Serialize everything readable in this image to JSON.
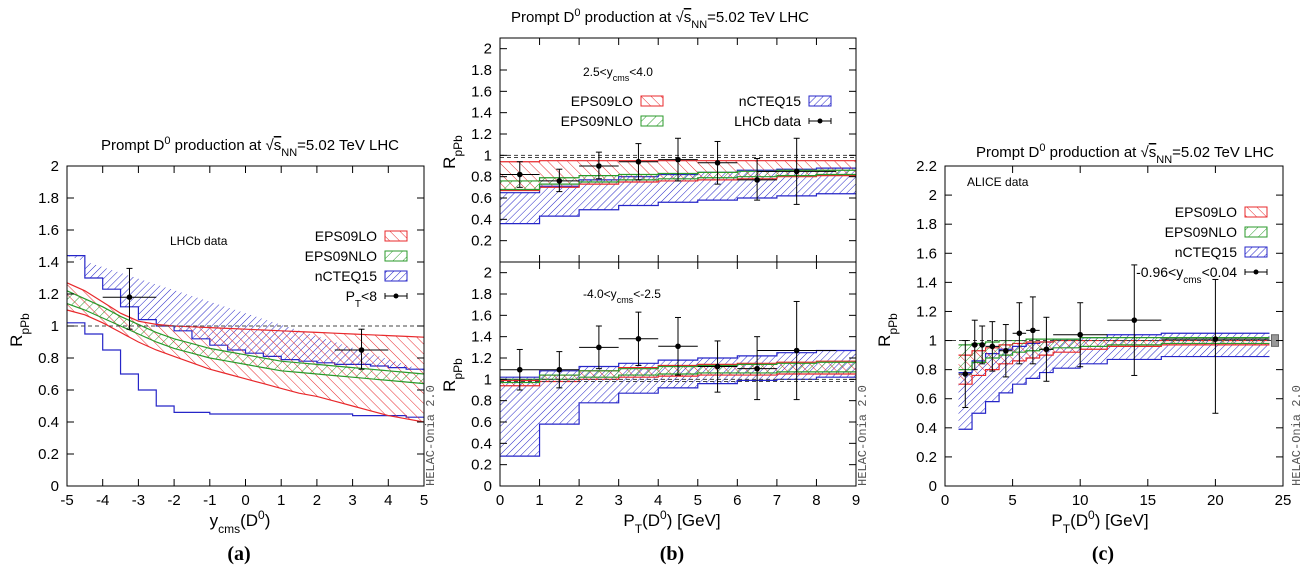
{
  "colors": {
    "eps09lo": "#e8282b",
    "eps09nlo": "#2a9a2a",
    "ncteq15": "#2626c8",
    "data": "#000000",
    "frame": "#000000"
  },
  "chart_data": [
    {
      "type": "area",
      "panel_label": "(a)",
      "title_prefix": "Prompt D",
      "title_sup": "0",
      "title_mid": " production at ",
      "title_sqrt": "s",
      "title_sub": "NN",
      "title_suffix": "=5.02 TeV LHC",
      "xlabel_main": "y",
      "xlabel_sub": "cms",
      "xlabel_rest": "(D",
      "xlabel_sup": "0",
      "xlabel_end": ")",
      "ylabel_main": "R",
      "ylabel_sub": "pPb",
      "xlim": [
        -5,
        5
      ],
      "ylim": [
        0,
        2
      ],
      "xticks": [
        "-5",
        "-4",
        "-3",
        "-2",
        "-1",
        "0",
        "1",
        "2",
        "3",
        "4",
        "5"
      ],
      "yticks": [
        "0",
        "0.2",
        "0.4",
        "0.6",
        "0.8",
        "1",
        "1.2",
        "1.4",
        "1.6",
        "1.8",
        "2"
      ],
      "annotation": "LHCb data",
      "watermark": "HELAC-Onia 2.0",
      "legend": [
        {
          "series": "eps09lo",
          "label": "EPS09LO"
        },
        {
          "series": "eps09nlo",
          "label": "EPS09NLO"
        },
        {
          "series": "ncteq15",
          "label": "nCTEQ15"
        },
        {
          "series": "data",
          "label": "",
          "label_main": "P",
          "label_sub": "T",
          "label_rest": "<8"
        }
      ],
      "bands": {
        "eps09lo": {
          "mode": "smooth",
          "x": [
            -5,
            -4.5,
            -4,
            -3.5,
            -3,
            -2.5,
            -2,
            -1.5,
            -1,
            -0.5,
            0,
            0.5,
            1,
            1.5,
            2,
            2.5,
            3,
            3.5,
            4,
            4.5,
            5
          ],
          "lo": [
            1.1,
            1.07,
            1.02,
            0.96,
            0.9,
            0.85,
            0.81,
            0.77,
            0.73,
            0.7,
            0.67,
            0.64,
            0.61,
            0.58,
            0.56,
            0.53,
            0.5,
            0.47,
            0.44,
            0.42,
            0.4
          ],
          "hi": [
            1.27,
            1.22,
            1.15,
            1.08,
            1.03,
            1.01,
            1.0,
            0.995,
            0.99,
            0.985,
            0.98,
            0.975,
            0.97,
            0.965,
            0.96,
            0.955,
            0.95,
            0.945,
            0.94,
            0.935,
            0.93
          ]
        },
        "eps09nlo": {
          "mode": "smooth",
          "x": [
            -5,
            -4.5,
            -4,
            -3.5,
            -3,
            -2.5,
            -2,
            -1.5,
            -1,
            -0.5,
            0,
            0.5,
            1,
            1.5,
            2,
            2.5,
            3,
            3.5,
            4,
            4.5,
            5
          ],
          "lo": [
            1.14,
            1.1,
            1.05,
            1.0,
            0.95,
            0.9,
            0.86,
            0.83,
            0.8,
            0.78,
            0.76,
            0.74,
            0.72,
            0.71,
            0.7,
            0.69,
            0.68,
            0.67,
            0.66,
            0.65,
            0.64
          ],
          "hi": [
            1.22,
            1.17,
            1.12,
            1.06,
            1.01,
            0.96,
            0.92,
            0.89,
            0.86,
            0.84,
            0.82,
            0.8,
            0.78,
            0.77,
            0.76,
            0.75,
            0.74,
            0.73,
            0.72,
            0.71,
            0.7
          ]
        },
        "ncteq15": {
          "mode": "step",
          "edges": [
            -5,
            -4.5,
            -4,
            -3.5,
            -3,
            -2.5,
            -2,
            -1.5,
            -1,
            -0.5,
            0,
            0.5,
            1,
            1.5,
            2,
            2.5,
            3,
            3.5,
            4,
            4.5,
            5
          ],
          "lo": [
            1.02,
            0.95,
            0.85,
            0.7,
            0.6,
            0.5,
            0.46,
            0.46,
            0.45,
            0.45,
            0.45,
            0.45,
            0.45,
            0.45,
            0.45,
            0.45,
            0.44,
            0.44,
            0.44,
            0.43,
            0.43
          ],
          "hi": [
            1.44,
            1.3,
            1.23,
            1.12,
            1.04,
            1.0,
            0.97,
            0.92,
            0.88,
            0.85,
            0.83,
            0.81,
            0.79,
            0.78,
            0.77,
            0.76,
            0.76,
            0.75,
            0.74,
            0.73,
            0.72
          ]
        }
      },
      "refline": 1.0,
      "points": [
        {
          "x": -3.25,
          "y": 1.18,
          "xerr": 0.75,
          "ylo": 0.98,
          "yhi": 1.36
        },
        {
          "x": 3.25,
          "y": 0.85,
          "xerr": 0.75,
          "ylo": 0.73,
          "yhi": 0.98
        }
      ]
    },
    {
      "type": "area",
      "panel_label": "(b)",
      "title_prefix": "Prompt D",
      "title_sup": "0",
      "title_mid": " production at ",
      "title_sqrt": "s",
      "title_sub": "NN",
      "title_suffix": "=5.02 TeV LHC",
      "xlabel_main": "P",
      "xlabel_sub": "T",
      "xlabel_rest": "(D",
      "xlabel_sup": "0",
      "xlabel_end": ") [GeV]",
      "xlim": [
        0,
        9
      ],
      "xticks": [
        "0",
        "1",
        "2",
        "3",
        "4",
        "5",
        "6",
        "7",
        "8",
        "9"
      ],
      "watermark": "HELAC-Onia 2.0",
      "subpanels": [
        {
          "ylim": [
            0,
            2.1
          ],
          "yticks": [
            "0.2",
            "0.4",
            "0.6",
            "0.8",
            "1",
            "1.2",
            "1.4",
            "1.6",
            "1.8",
            "2"
          ],
          "ylabel_main": "R",
          "ylabel_sub": "pPb",
          "annotation_pre": "2.5<y",
          "annotation_sub": "cms",
          "annotation_post": "<4.0",
          "legend": [
            {
              "series": "eps09lo",
              "label": "EPS09LO"
            },
            {
              "series": "ncteq15",
              "label": "nCTEQ15"
            },
            {
              "series": "eps09nlo",
              "label": "EPS09NLO"
            },
            {
              "series": "data",
              "label": "LHCb data"
            }
          ],
          "refline": [
            1.0,
            0.98
          ],
          "bands": {
            "eps09lo": {
              "edges": [
                0,
                1,
                2,
                3,
                4,
                5,
                6,
                7,
                8,
                9
              ],
              "lo": [
                0.67,
                0.7,
                0.73,
                0.75,
                0.76,
                0.77,
                0.78,
                0.8,
                0.81
              ],
              "hi": [
                0.94,
                0.95,
                0.95,
                0.95,
                0.95,
                0.95,
                0.95,
                0.95,
                0.95
              ]
            },
            "eps09nlo": {
              "edges": [
                0,
                1,
                2,
                3,
                4,
                5,
                6,
                7,
                8,
                9
              ],
              "lo": [
                0.68,
                0.73,
                0.75,
                0.77,
                0.78,
                0.79,
                0.8,
                0.81,
                0.82
              ],
              "hi": [
                0.76,
                0.79,
                0.81,
                0.82,
                0.83,
                0.84,
                0.85,
                0.86,
                0.86
              ]
            },
            "ncteq15": {
              "edges": [
                0,
                1,
                2,
                3,
                4,
                5,
                6,
                7,
                8,
                9
              ],
              "lo": [
                0.36,
                0.43,
                0.49,
                0.53,
                0.56,
                0.58,
                0.6,
                0.62,
                0.64
              ],
              "hi": [
                0.65,
                0.71,
                0.77,
                0.8,
                0.82,
                0.84,
                0.86,
                0.87,
                0.88
              ]
            }
          },
          "points": [
            {
              "x": 0.5,
              "y": 0.82,
              "xerr": 0.5,
              "ylo": 0.7,
              "yhi": 0.94
            },
            {
              "x": 1.5,
              "y": 0.76,
              "xerr": 0.5,
              "ylo": 0.66,
              "yhi": 0.87
            },
            {
              "x": 2.5,
              "y": 0.9,
              "xerr": 0.5,
              "ylo": 0.78,
              "yhi": 1.03
            },
            {
              "x": 3.5,
              "y": 0.94,
              "xerr": 0.5,
              "ylo": 0.77,
              "yhi": 1.11
            },
            {
              "x": 4.5,
              "y": 0.96,
              "xerr": 0.5,
              "ylo": 0.76,
              "yhi": 1.16
            },
            {
              "x": 5.5,
              "y": 0.93,
              "xerr": 0.5,
              "ylo": 0.73,
              "yhi": 1.13
            },
            {
              "x": 6.5,
              "y": 0.77,
              "xerr": 0.5,
              "ylo": 0.58,
              "yhi": 0.97
            },
            {
              "x": 7.5,
              "y": 0.85,
              "xerr": 1.0,
              "ylo": 0.54,
              "yhi": 1.16
            }
          ]
        },
        {
          "ylim": [
            0,
            2.1
          ],
          "yticks": [
            "0",
            "0.2",
            "0.4",
            "0.6",
            "0.8",
            "1",
            "1.2",
            "1.4",
            "1.6",
            "1.8",
            "2"
          ],
          "ylabel_main": "R",
          "ylabel_sub": "pPb",
          "annotation_pre": "-4.0<y",
          "annotation_sub": "cms",
          "annotation_post": "<-2.5",
          "refline": [
            1.0,
            0.98
          ],
          "bands": {
            "eps09lo": {
              "edges": [
                0,
                1,
                2,
                3,
                4,
                5,
                6,
                7,
                8,
                9
              ],
              "lo": [
                0.94,
                0.98,
                1.0,
                1.02,
                1.03,
                1.04,
                1.04,
                1.05,
                1.05
              ],
              "hi": [
                0.99,
                1.04,
                1.08,
                1.11,
                1.13,
                1.14,
                1.15,
                1.16,
                1.17
              ]
            },
            "eps09nlo": {
              "edges": [
                0,
                1,
                2,
                3,
                4,
                5,
                6,
                7,
                8,
                9
              ],
              "lo": [
                0.97,
                1.0,
                1.02,
                1.04,
                1.05,
                1.06,
                1.06,
                1.07,
                1.07
              ],
              "hi": [
                1.0,
                1.04,
                1.08,
                1.1,
                1.12,
                1.13,
                1.14,
                1.15,
                1.16
              ]
            },
            "ncteq15": {
              "edges": [
                0,
                1,
                2,
                3,
                4,
                5,
                6,
                7,
                8,
                9
              ],
              "lo": [
                0.28,
                0.58,
                0.78,
                0.87,
                0.92,
                0.96,
                0.99,
                1.0,
                1.02
              ],
              "hi": [
                1.02,
                1.08,
                1.12,
                1.15,
                1.18,
                1.2,
                1.22,
                1.25,
                1.27
              ]
            }
          },
          "points": [
            {
              "x": 0.5,
              "y": 1.09,
              "xerr": 0.5,
              "ylo": 0.9,
              "yhi": 1.28
            },
            {
              "x": 1.5,
              "y": 1.09,
              "xerr": 0.5,
              "ylo": 0.92,
              "yhi": 1.26
            },
            {
              "x": 2.5,
              "y": 1.3,
              "xerr": 0.5,
              "ylo": 1.1,
              "yhi": 1.5
            },
            {
              "x": 3.5,
              "y": 1.38,
              "xerr": 0.5,
              "ylo": 1.13,
              "yhi": 1.63
            },
            {
              "x": 4.5,
              "y": 1.31,
              "xerr": 0.5,
              "ylo": 1.04,
              "yhi": 1.58
            },
            {
              "x": 5.5,
              "y": 1.12,
              "xerr": 0.5,
              "ylo": 0.88,
              "yhi": 1.36
            },
            {
              "x": 6.5,
              "y": 1.1,
              "xerr": 0.5,
              "ylo": 0.81,
              "yhi": 1.4
            },
            {
              "x": 7.5,
              "y": 1.27,
              "xerr": 1.0,
              "ylo": 0.81,
              "yhi": 1.73
            }
          ]
        }
      ]
    },
    {
      "type": "area",
      "panel_label": "(c)",
      "title_prefix": "Prompt D",
      "title_sup": "0",
      "title_mid": " production at ",
      "title_sqrt": "s",
      "title_sub": "NN",
      "title_suffix": "=5.02 TeV LHC",
      "xlabel_main": "P",
      "xlabel_sub": "T",
      "xlabel_rest": "(D",
      "xlabel_sup": "0",
      "xlabel_end": ") [GeV]",
      "ylabel_main": "R",
      "ylabel_sub": "pPb",
      "xlim": [
        0,
        25
      ],
      "ylim": [
        0,
        2.2
      ],
      "xticks": [
        "0",
        "5",
        "10",
        "15",
        "20",
        "25"
      ],
      "yticks": [
        "0",
        "0.2",
        "0.4",
        "0.6",
        "0.8",
        "1",
        "1.2",
        "1.4",
        "1.6",
        "1.8",
        "2",
        "2.2"
      ],
      "annotation": "ALICE data",
      "watermark": "HELAC-Onia 2.0",
      "legend": [
        {
          "series": "eps09lo",
          "label": "EPS09LO"
        },
        {
          "series": "eps09nlo",
          "label": "EPS09NLO"
        },
        {
          "series": "ncteq15",
          "label": "nCTEQ15"
        },
        {
          "series": "data",
          "label": "",
          "label_main": "-0.96<y",
          "label_sub": "cms",
          "label_rest": "<0.04"
        }
      ],
      "refline": [
        1.0
      ],
      "bands": {
        "eps09lo": {
          "edges": [
            1,
            2,
            3,
            4,
            5,
            6,
            7,
            8,
            10,
            12,
            16,
            24
          ],
          "lo": [
            0.7,
            0.76,
            0.8,
            0.84,
            0.86,
            0.88,
            0.9,
            0.92,
            0.94,
            0.96,
            0.97
          ],
          "hi": [
            0.9,
            0.93,
            0.95,
            0.97,
            0.98,
            0.99,
            0.99,
            1.0,
            1.0,
            1.0,
            1.0
          ]
        },
        "eps09nlo": {
          "edges": [
            1,
            2,
            3,
            4,
            5,
            6,
            7,
            8,
            10,
            12,
            16,
            24
          ],
          "lo": [
            0.8,
            0.85,
            0.88,
            0.9,
            0.92,
            0.93,
            0.94,
            0.95,
            0.96,
            0.97,
            0.98
          ],
          "hi": [
            0.97,
            0.98,
            0.99,
            1.0,
            1.0,
            1.01,
            1.01,
            1.01,
            1.02,
            1.02,
            1.02
          ]
        },
        "ncteq15": {
          "edges": [
            1,
            2,
            3,
            4,
            5,
            6,
            7,
            8,
            10,
            12,
            16,
            24
          ],
          "lo": [
            0.39,
            0.5,
            0.58,
            0.64,
            0.7,
            0.74,
            0.78,
            0.81,
            0.84,
            0.87,
            0.89
          ],
          "hi": [
            0.78,
            0.86,
            0.91,
            0.94,
            0.96,
            0.98,
            0.99,
            1.01,
            1.02,
            1.04,
            1.05
          ]
        }
      },
      "points": [
        {
          "x": 1.5,
          "y": 0.77,
          "xerr": 0.5,
          "ylo": 0.54,
          "yhi": 1.0
        },
        {
          "x": 2.2,
          "y": 0.97,
          "xerr": 0.25,
          "ylo": 0.8,
          "yhi": 1.14
        },
        {
          "x": 2.75,
          "y": 0.97,
          "xerr": 0.25,
          "ylo": 0.84,
          "yhi": 1.1
        },
        {
          "x": 3.5,
          "y": 0.96,
          "xerr": 0.5,
          "ylo": 0.79,
          "yhi": 1.13
        },
        {
          "x": 4.5,
          "y": 0.93,
          "xerr": 0.5,
          "ylo": 0.75,
          "yhi": 1.11
        },
        {
          "x": 5.5,
          "y": 1.05,
          "xerr": 0.5,
          "ylo": 0.84,
          "yhi": 1.26
        },
        {
          "x": 6.5,
          "y": 1.07,
          "xerr": 0.5,
          "ylo": 0.84,
          "yhi": 1.3
        },
        {
          "x": 7.5,
          "y": 0.94,
          "xerr": 0.5,
          "ylo": 0.72,
          "yhi": 1.16
        },
        {
          "x": 10.0,
          "y": 1.04,
          "xerr": 2.0,
          "ylo": 0.82,
          "yhi": 1.26
        },
        {
          "x": 14.0,
          "y": 1.14,
          "xerr": 2.0,
          "ylo": 0.76,
          "yhi": 1.52
        },
        {
          "x": 20.0,
          "y": 1.01,
          "xerr": 4.0,
          "ylo": 0.5,
          "yhi": 1.42
        }
      ],
      "syst_box": {
        "x": 24,
        "y": 1.0,
        "half": 0.04
      }
    }
  ]
}
